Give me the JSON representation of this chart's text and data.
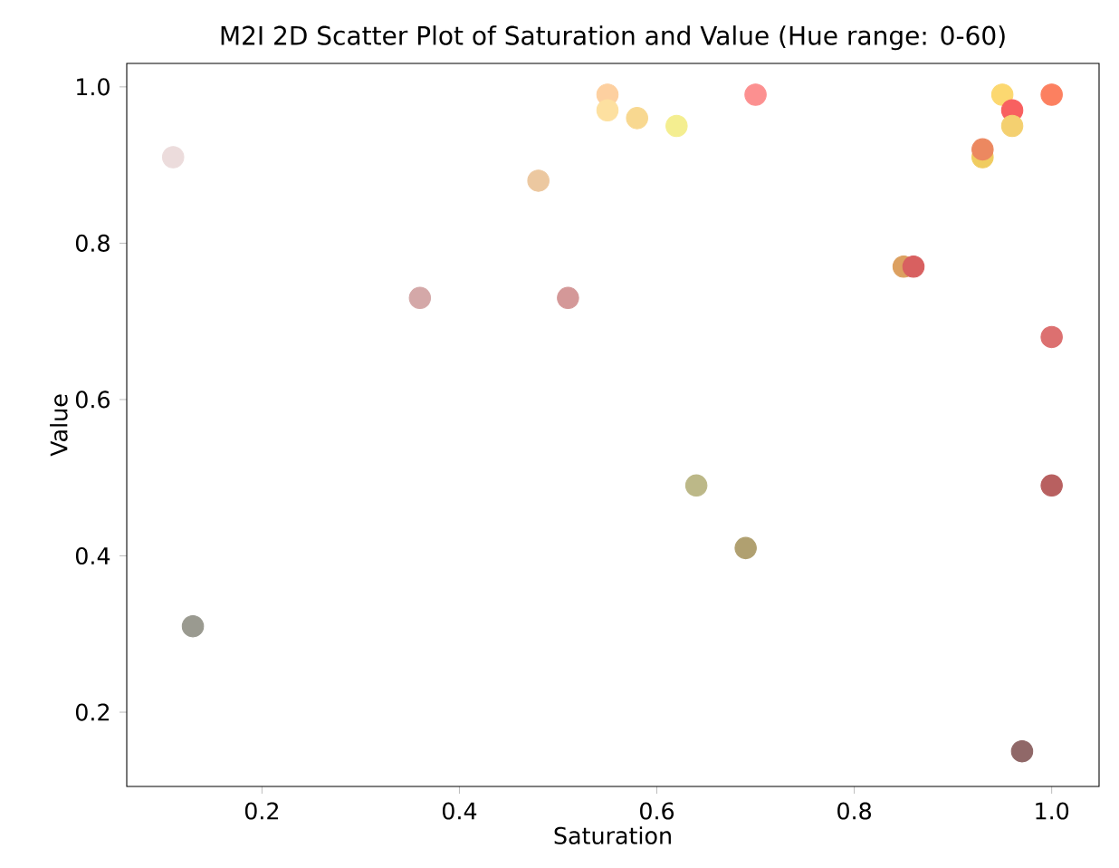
{
  "chart_data": {
    "type": "scatter",
    "title": "M2I 2D Scatter Plot of Saturation and Value (Hue range: 0-60)",
    "xlabel": "Saturation",
    "ylabel": "Value",
    "x": [
      0.11,
      0.13,
      0.36,
      0.48,
      0.51,
      0.55,
      0.55,
      0.58,
      0.62,
      0.64,
      0.69,
      0.7,
      0.85,
      0.86,
      0.93,
      0.93,
      0.95,
      0.96,
      0.96,
      0.97,
      1.0,
      1.0,
      1.0
    ],
    "values": [
      0.91,
      0.31,
      0.73,
      0.88,
      0.73,
      0.99,
      0.97,
      0.96,
      0.95,
      0.49,
      0.41,
      0.99,
      0.77,
      0.77,
      0.91,
      0.92,
      0.99,
      0.97,
      0.95,
      0.15,
      0.99,
      0.68,
      0.49
    ],
    "colors": [
      "#ecdcdc",
      "#9a9a90",
      "#d4a8a8",
      "#ecc8a0",
      "#d49898",
      "#fdd0a0",
      "#fde0a0",
      "#f8d890",
      "#f4ee90",
      "#bcb888",
      "#b0a070",
      "#fc9090",
      "#dca060",
      "#d86060",
      "#f0cc60",
      "#ec8860",
      "#fcd870",
      "#f86060",
      "#f4d070",
      "#906868",
      "#fc8060",
      "#dc7070",
      "#b86060"
    ],
    "grid": false,
    "xlim": [
      0.063,
      1.048
    ],
    "ylim": [
      0.105,
      1.03
    ],
    "xticks": [
      {
        "value": 0.2,
        "label": "0.2"
      },
      {
        "value": 0.4,
        "label": "0.4"
      },
      {
        "value": 0.6,
        "label": "0.6"
      },
      {
        "value": 0.8,
        "label": "0.8"
      },
      {
        "value": 1.0,
        "label": "1.0"
      }
    ],
    "yticks": [
      {
        "value": 0.2,
        "label": "0.2"
      },
      {
        "value": 0.4,
        "label": "0.4"
      },
      {
        "value": 0.6,
        "label": "0.6"
      },
      {
        "value": 0.8,
        "label": "0.8"
      },
      {
        "value": 1.0,
        "label": "1.0"
      }
    ]
  }
}
